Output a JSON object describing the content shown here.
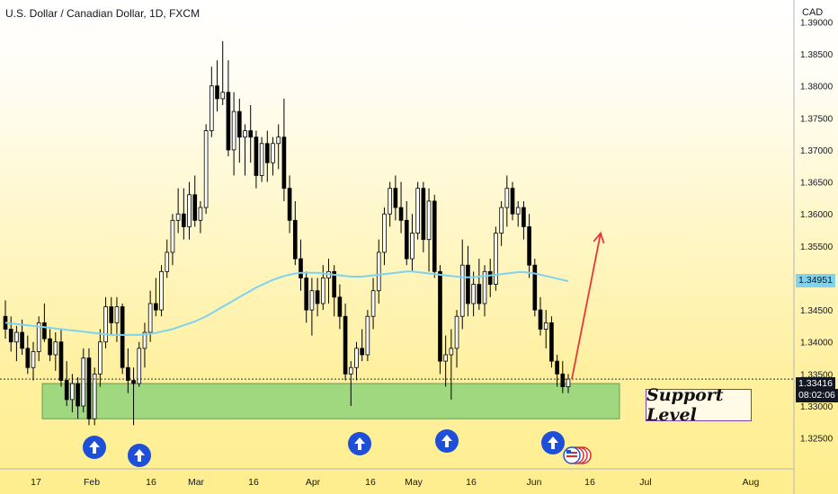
{
  "header": {
    "title": "U.S. Dollar / Canadian Dollar, 1D, FXCM",
    "currency": "CAD"
  },
  "price_scale": {
    "ticks": [
      "1.39000",
      "1.38500",
      "1.38000",
      "1.37500",
      "1.37000",
      "1.36500",
      "1.36000",
      "1.35500",
      "1.35000",
      "1.34500",
      "1.34000",
      "1.33500",
      "1.33000",
      "1.32500"
    ],
    "ma_value_label": "1.34951",
    "last_price_label": "1.33416",
    "countdown_label": "08:02:06"
  },
  "time_axis": {
    "labels": [
      "17",
      "Feb",
      "16",
      "Mar",
      "16",
      "Apr",
      "16",
      "May",
      "16",
      "Jun",
      "16",
      "Jul",
      "Aug"
    ]
  },
  "annotation": {
    "label": "Support Level"
  },
  "colors": {
    "bull_candle": "#ffffff",
    "bear_candle": "#000000",
    "moving_average": "#7dd3f0",
    "support_zone": "#8fd47a",
    "projection_arrow": "#e53935",
    "marker_circle": "#1e4fd8"
  },
  "chart_data": {
    "type": "candlestick",
    "timeframe": "1D",
    "y_axis": {
      "min": 1.3225,
      "max": 1.39
    },
    "candles": [
      [
        1.344,
        1.3465,
        1.3405,
        1.342
      ],
      [
        1.342,
        1.344,
        1.3385,
        1.34
      ],
      [
        1.34,
        1.3425,
        1.337,
        1.3415
      ],
      [
        1.3415,
        1.3435,
        1.338,
        1.339
      ],
      [
        1.339,
        1.341,
        1.335,
        1.336
      ],
      [
        1.336,
        1.34,
        1.334,
        1.3385
      ],
      [
        1.3385,
        1.344,
        1.337,
        1.343
      ],
      [
        1.343,
        1.346,
        1.34,
        1.3405
      ],
      [
        1.3405,
        1.342,
        1.337,
        1.338
      ],
      [
        1.338,
        1.3415,
        1.3355,
        1.34
      ],
      [
        1.34,
        1.342,
        1.333,
        1.334
      ],
      [
        1.334,
        1.337,
        1.33,
        1.331
      ],
      [
        1.331,
        1.335,
        1.329,
        1.3335
      ],
      [
        1.3335,
        1.3345,
        1.328,
        1.33
      ],
      [
        1.33,
        1.339,
        1.329,
        1.3375
      ],
      [
        1.3375,
        1.339,
        1.327,
        1.328
      ],
      [
        1.328,
        1.336,
        1.327,
        1.335
      ],
      [
        1.335,
        1.342,
        1.333,
        1.34
      ],
      [
        1.34,
        1.347,
        1.339,
        1.3455
      ],
      [
        1.3455,
        1.347,
        1.341,
        1.343
      ],
      [
        1.343,
        1.347,
        1.34,
        1.3455
      ],
      [
        1.3455,
        1.346,
        1.335,
        1.336
      ],
      [
        1.336,
        1.339,
        1.332,
        1.334
      ],
      [
        1.334,
        1.336,
        1.327,
        1.3335
      ],
      [
        1.3335,
        1.34,
        1.333,
        1.339
      ],
      [
        1.339,
        1.343,
        1.336,
        1.3415
      ],
      [
        1.3415,
        1.348,
        1.34,
        1.346
      ],
      [
        1.346,
        1.35,
        1.344,
        1.345
      ],
      [
        1.345,
        1.352,
        1.344,
        1.351
      ],
      [
        1.351,
        1.356,
        1.35,
        1.354
      ],
      [
        1.354,
        1.36,
        1.352,
        1.359
      ],
      [
        1.359,
        1.364,
        1.357,
        1.36
      ],
      [
        1.36,
        1.364,
        1.356,
        1.358
      ],
      [
        1.358,
        1.365,
        1.356,
        1.363
      ],
      [
        1.363,
        1.366,
        1.358,
        1.359
      ],
      [
        1.359,
        1.362,
        1.357,
        1.361
      ],
      [
        1.361,
        1.374,
        1.36,
        1.373
      ],
      [
        1.373,
        1.383,
        1.372,
        1.38
      ],
      [
        1.38,
        1.384,
        1.376,
        1.378
      ],
      [
        1.378,
        1.387,
        1.377,
        1.379
      ],
      [
        1.379,
        1.384,
        1.369,
        1.37
      ],
      [
        1.37,
        1.379,
        1.366,
        1.376
      ],
      [
        1.376,
        1.378,
        1.368,
        1.372
      ],
      [
        1.372,
        1.374,
        1.366,
        1.373
      ],
      [
        1.373,
        1.377,
        1.368,
        1.372
      ],
      [
        1.372,
        1.373,
        1.364,
        1.366
      ],
      [
        1.366,
        1.372,
        1.365,
        1.371
      ],
      [
        1.371,
        1.373,
        1.365,
        1.368
      ],
      [
        1.368,
        1.372,
        1.366,
        1.371
      ],
      [
        1.371,
        1.374,
        1.367,
        1.372
      ],
      [
        1.372,
        1.378,
        1.362,
        1.364
      ],
      [
        1.364,
        1.366,
        1.357,
        1.359
      ],
      [
        1.359,
        1.362,
        1.352,
        1.353
      ],
      [
        1.353,
        1.356,
        1.348,
        1.35
      ],
      [
        1.35,
        1.351,
        1.343,
        1.345
      ],
      [
        1.345,
        1.35,
        1.341,
        1.348
      ],
      [
        1.348,
        1.35,
        1.344,
        1.346
      ],
      [
        1.346,
        1.352,
        1.345,
        1.35
      ],
      [
        1.35,
        1.353,
        1.346,
        1.351
      ],
      [
        1.351,
        1.352,
        1.344,
        1.347
      ],
      [
        1.347,
        1.349,
        1.342,
        1.344
      ],
      [
        1.344,
        1.346,
        1.334,
        1.335
      ],
      [
        1.335,
        1.337,
        1.33,
        1.336
      ],
      [
        1.336,
        1.34,
        1.334,
        1.339
      ],
      [
        1.339,
        1.342,
        1.337,
        1.338
      ],
      [
        1.338,
        1.345,
        1.337,
        1.344
      ],
      [
        1.344,
        1.35,
        1.342,
        1.348
      ],
      [
        1.348,
        1.356,
        1.346,
        1.354
      ],
      [
        1.354,
        1.361,
        1.352,
        1.36
      ],
      [
        1.36,
        1.365,
        1.358,
        1.364
      ],
      [
        1.364,
        1.366,
        1.359,
        1.361
      ],
      [
        1.361,
        1.365,
        1.357,
        1.359
      ],
      [
        1.359,
        1.362,
        1.352,
        1.353
      ],
      [
        1.353,
        1.36,
        1.351,
        1.357
      ],
      [
        1.357,
        1.365,
        1.356,
        1.364
      ],
      [
        1.364,
        1.365,
        1.354,
        1.356
      ],
      [
        1.356,
        1.364,
        1.351,
        1.362
      ],
      [
        1.362,
        1.363,
        1.35,
        1.351
      ],
      [
        1.351,
        1.352,
        1.335,
        1.337
      ],
      [
        1.337,
        1.341,
        1.333,
        1.338
      ],
      [
        1.338,
        1.342,
        1.331,
        1.339
      ],
      [
        1.339,
        1.345,
        1.336,
        1.344
      ],
      [
        1.344,
        1.356,
        1.342,
        1.352
      ],
      [
        1.352,
        1.355,
        1.344,
        1.346
      ],
      [
        1.346,
        1.351,
        1.344,
        1.349
      ],
      [
        1.349,
        1.353,
        1.345,
        1.346
      ],
      [
        1.346,
        1.352,
        1.344,
        1.351
      ],
      [
        1.351,
        1.353,
        1.347,
        1.349
      ],
      [
        1.349,
        1.358,
        1.348,
        1.357
      ],
      [
        1.357,
        1.362,
        1.355,
        1.361
      ],
      [
        1.361,
        1.366,
        1.358,
        1.364
      ],
      [
        1.364,
        1.365,
        1.359,
        1.36
      ],
      [
        1.36,
        1.362,
        1.358,
        1.361
      ],
      [
        1.361,
        1.362,
        1.356,
        1.358
      ],
      [
        1.358,
        1.36,
        1.35,
        1.352
      ],
      [
        1.352,
        1.353,
        1.344,
        1.345
      ],
      [
        1.345,
        1.347,
        1.341,
        1.342
      ],
      [
        1.342,
        1.345,
        1.339,
        1.343
      ],
      [
        1.343,
        1.344,
        1.336,
        1.337
      ],
      [
        1.337,
        1.338,
        1.333,
        1.335
      ],
      [
        1.335,
        1.337,
        1.332,
        1.333
      ],
      [
        1.333,
        1.335,
        1.332,
        1.3342
      ]
    ],
    "moving_average": [
      1.343,
      1.3429,
      1.3428,
      1.3427,
      1.3426,
      1.3425,
      1.3424,
      1.3423,
      1.3422,
      1.3421,
      1.342,
      1.3419,
      1.3418,
      1.3417,
      1.3416,
      1.3415,
      1.3414,
      1.3413,
      1.3412,
      1.3411,
      1.3411,
      1.3411,
      1.3411,
      1.3411,
      1.3411,
      1.3412,
      1.3413,
      1.3414,
      1.3416,
      1.3418,
      1.342,
      1.3423,
      1.3426,
      1.3429,
      1.3432,
      1.3436,
      1.344,
      1.3445,
      1.345,
      1.3455,
      1.346,
      1.3465,
      1.347,
      1.3475,
      1.348,
      1.3485,
      1.3489,
      1.3493,
      1.3497,
      1.35,
      1.3503,
      1.3505,
      1.3507,
      1.3508,
      1.3508,
      1.3508,
      1.3508,
      1.3507,
      1.3506,
      1.3505,
      1.3504,
      1.3503,
      1.3502,
      1.3502,
      1.3502,
      1.3503,
      1.3504,
      1.3505,
      1.3506,
      1.3507,
      1.3508,
      1.3509,
      1.351,
      1.351,
      1.3509,
      1.3508,
      1.3507,
      1.3506,
      1.3505,
      1.3504,
      1.3503,
      1.3502,
      1.3501,
      1.3501,
      1.3501,
      1.3502,
      1.3503,
      1.3504,
      1.3505,
      1.3506,
      1.3507,
      1.3508,
      1.3509,
      1.3509,
      1.3508,
      1.3507,
      1.3505,
      1.3503,
      1.3501,
      1.3499,
      1.3497,
      1.3495
    ],
    "support_zone": {
      "from": 1.328,
      "to": 1.3335
    },
    "projection": {
      "from": 1.3342,
      "to": 1.357
    },
    "markers": {
      "count": 5,
      "direction": "up"
    }
  }
}
